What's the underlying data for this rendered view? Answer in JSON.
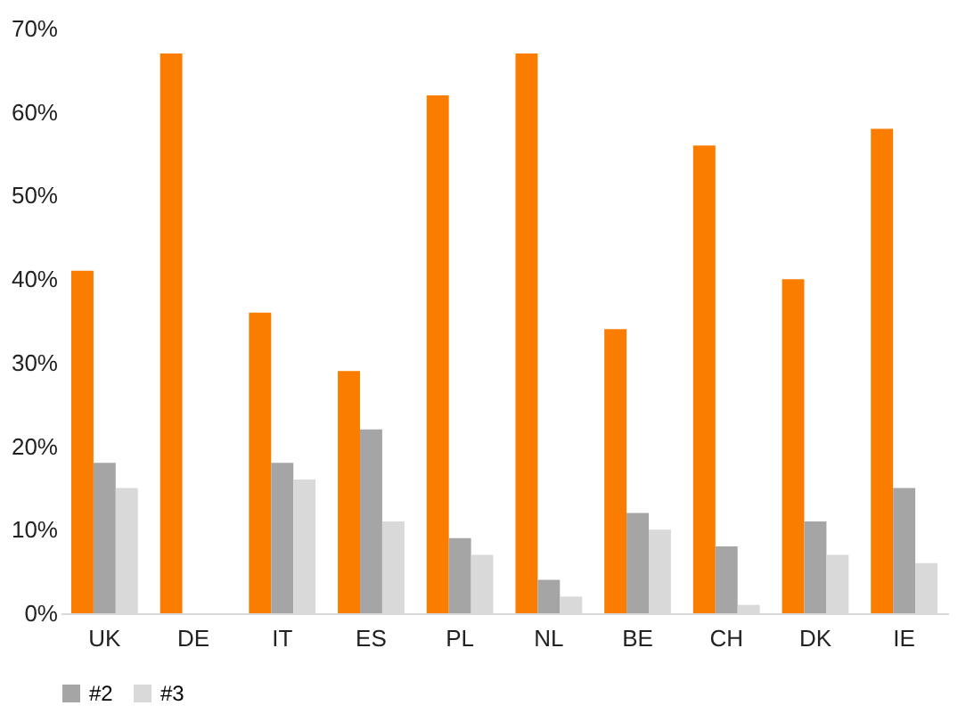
{
  "chart_data": {
    "type": "bar",
    "categories": [
      "UK",
      "DE",
      "IT",
      "ES",
      "PL",
      "NL",
      "BE",
      "CH",
      "DK",
      "IE"
    ],
    "series": [
      {
        "color": "#fa7d00",
        "values": [
          41,
          67,
          36,
          29,
          62,
          67,
          34,
          56,
          40,
          58
        ]
      },
      {
        "name": "#2",
        "color": "#a5a5a5",
        "values": [
          18,
          0,
          18,
          22,
          9,
          4,
          12,
          8,
          11,
          15
        ]
      },
      {
        "name": "#3",
        "color": "#d9d9d9",
        "values": [
          15,
          0,
          16,
          11,
          7,
          2,
          10,
          1,
          7,
          6
        ]
      }
    ],
    "ylim": [
      0,
      70
    ],
    "yticks": [
      {
        "value": 0,
        "label": "0%"
      },
      {
        "value": 10,
        "label": "10%"
      },
      {
        "value": 20,
        "label": "20%"
      },
      {
        "value": 30,
        "label": "30%"
      },
      {
        "value": 40,
        "label": "40%"
      },
      {
        "value": 50,
        "label": "50%"
      },
      {
        "value": 60,
        "label": "60%"
      },
      {
        "value": 70,
        "label": "70%"
      }
    ],
    "grid": false,
    "legend": "bottom"
  }
}
